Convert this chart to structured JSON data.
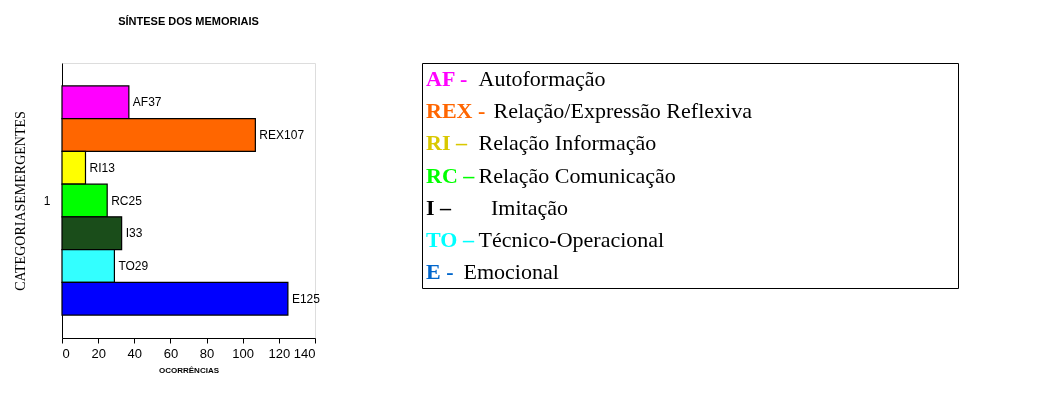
{
  "chart_data": [
    {
      "type": "bar",
      "orientation": "horizontal",
      "title": "SÍNTESE DOS MEMORIAIS",
      "xlabel": "OCORRÊNCIAS",
      "ylabel": "CATEGORIASEMERGENTES",
      "categories": [
        null,
        null,
        null,
        "1",
        null,
        null,
        null
      ],
      "xlim": [
        0,
        140
      ],
      "xticks": [
        0,
        20,
        40,
        60,
        80,
        100,
        120,
        140
      ],
      "grid": false,
      "legend": false,
      "values": [
        37,
        107,
        13,
        25,
        33,
        29,
        125
      ],
      "colors": [
        "#ff00ff",
        "#ff6600",
        "#ffff00",
        "#00ff00",
        "#1a4d1a",
        "#33ffff",
        "#0000ff"
      ],
      "value_labels": [
        "AF37",
        "REX107",
        "RI13",
        "RC25",
        "I33",
        "TO29",
        "E125"
      ]
    },
    {
      "type": "other",
      "categories": [
        "AF -",
        "REX -",
        "RI –",
        "RC –",
        "I      –",
        "TO –",
        "E -"
      ],
      "colors": [
        "#ff00ff",
        "#ff6600",
        "#d9c800",
        "#00ff00",
        "#000000",
        "#00ffff",
        "#0066cc"
      ],
      "annotations": [
        "Autoformação",
        "Relação/Expressão Reflexiva",
        "Relação Informação",
        "Relação Comunicação",
        "Imitação",
        "Técnico-Operacional",
        "Emocional"
      ]
    }
  ]
}
